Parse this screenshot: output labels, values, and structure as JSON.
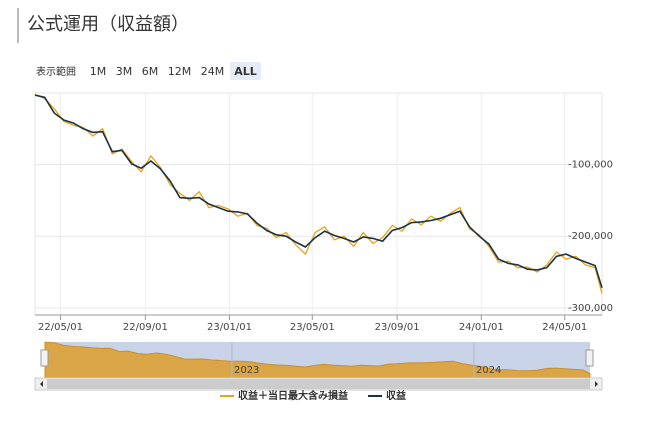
{
  "header": {
    "title": "公式運用（収益額）"
  },
  "range_selector": {
    "label": "表示範囲",
    "buttons": [
      "1M",
      "3M",
      "6M",
      "12M",
      "24M",
      "ALL"
    ],
    "active": 5
  },
  "chart_data": {
    "type": "line",
    "x": [
      "2022-03-25",
      "2022-04-08",
      "2022-04-22",
      "2022-05-06",
      "2022-05-20",
      "2022-06-03",
      "2022-06-17",
      "2022-07-01",
      "2022-07-15",
      "2022-07-29",
      "2022-08-12",
      "2022-08-26",
      "2022-09-09",
      "2022-09-23",
      "2022-10-07",
      "2022-10-21",
      "2022-11-04",
      "2022-11-18",
      "2022-12-02",
      "2022-12-16",
      "2022-12-30",
      "2023-01-13",
      "2023-01-27",
      "2023-02-10",
      "2023-02-24",
      "2023-03-10",
      "2023-03-24",
      "2023-04-07",
      "2023-04-21",
      "2023-05-05",
      "2023-05-19",
      "2023-06-02",
      "2023-06-16",
      "2023-06-30",
      "2023-07-14",
      "2023-07-28",
      "2023-08-11",
      "2023-08-25",
      "2023-09-08",
      "2023-09-22",
      "2023-10-06",
      "2023-10-20",
      "2023-11-03",
      "2023-11-17",
      "2023-12-01",
      "2023-12-15",
      "2023-12-29",
      "2024-01-12",
      "2024-01-26",
      "2024-02-09",
      "2024-02-23",
      "2024-03-08",
      "2024-03-22",
      "2024-04-05",
      "2024-04-19",
      "2024-05-03",
      "2024-05-17",
      "2024-05-31",
      "2024-06-14",
      "2024-06-24"
    ],
    "series": [
      {
        "name": "収益＋当日最大含み損益",
        "color": "#e8a317",
        "values": [
          -2000,
          -8000,
          -22000,
          -40000,
          -45000,
          -48000,
          -60000,
          -50000,
          -85000,
          -78000,
          -96000,
          -110000,
          -88000,
          -104000,
          -128000,
          -140000,
          -150000,
          -138000,
          -160000,
          -157000,
          -162000,
          -172000,
          -168000,
          -185000,
          -189000,
          -202000,
          -195000,
          -212000,
          -225000,
          -195000,
          -187000,
          -205000,
          -200000,
          -214000,
          -195000,
          -210000,
          -202000,
          -185000,
          -193000,
          -176000,
          -184000,
          -172000,
          -179000,
          -168000,
          -160000,
          -190000,
          -198000,
          -214000,
          -236000,
          -235000,
          -244000,
          -243000,
          -250000,
          -240000,
          -222000,
          -232000,
          -228000,
          -240000,
          -244000,
          -280000
        ]
      },
      {
        "name": "収益",
        "color": "#1a3345",
        "values": [
          -3000,
          -6000,
          -28000,
          -38000,
          -42000,
          -50000,
          -55000,
          -54000,
          -82000,
          -80000,
          -99000,
          -105000,
          -95000,
          -106000,
          -123000,
          -146000,
          -147000,
          -146000,
          -155000,
          -160000,
          -165000,
          -166000,
          -169000,
          -182000,
          -192000,
          -198000,
          -200000,
          -208000,
          -215000,
          -202000,
          -193000,
          -199000,
          -203000,
          -208000,
          -201000,
          -203000,
          -207000,
          -192000,
          -188000,
          -181000,
          -180000,
          -178000,
          -175000,
          -170000,
          -165000,
          -187000,
          -200000,
          -211000,
          -232000,
          -238000,
          -240000,
          -246000,
          -247000,
          -244000,
          -228000,
          -225000,
          -231000,
          -236000,
          -241000,
          -272000
        ]
      }
    ],
    "xlim": [
      "2022-03-25",
      "2024-06-24"
    ],
    "xticks": [
      {
        "value": "2022-05-01",
        "label": "22/05/01"
      },
      {
        "value": "2022-09-01",
        "label": "22/09/01"
      },
      {
        "value": "2023-01-01",
        "label": "23/01/01"
      },
      {
        "value": "2023-05-01",
        "label": "23/05/01"
      },
      {
        "value": "2023-09-01",
        "label": "23/09/01"
      },
      {
        "value": "2024-01-01",
        "label": "24/01/01"
      },
      {
        "value": "2024-05-01",
        "label": "24/05/01"
      }
    ],
    "ylim": [
      -310000,
      0
    ],
    "yticks": [
      {
        "value": -100000,
        "label": "-100,000"
      },
      {
        "value": -200000,
        "label": "-200,000"
      },
      {
        "value": -300000,
        "label": "-300,000"
      }
    ],
    "grid": true,
    "legend": "bottom"
  },
  "navigator": {
    "xticks": [
      {
        "value": "2023-01-01",
        "label": "2023"
      },
      {
        "value": "2024-01-01",
        "label": "2024"
      }
    ]
  }
}
